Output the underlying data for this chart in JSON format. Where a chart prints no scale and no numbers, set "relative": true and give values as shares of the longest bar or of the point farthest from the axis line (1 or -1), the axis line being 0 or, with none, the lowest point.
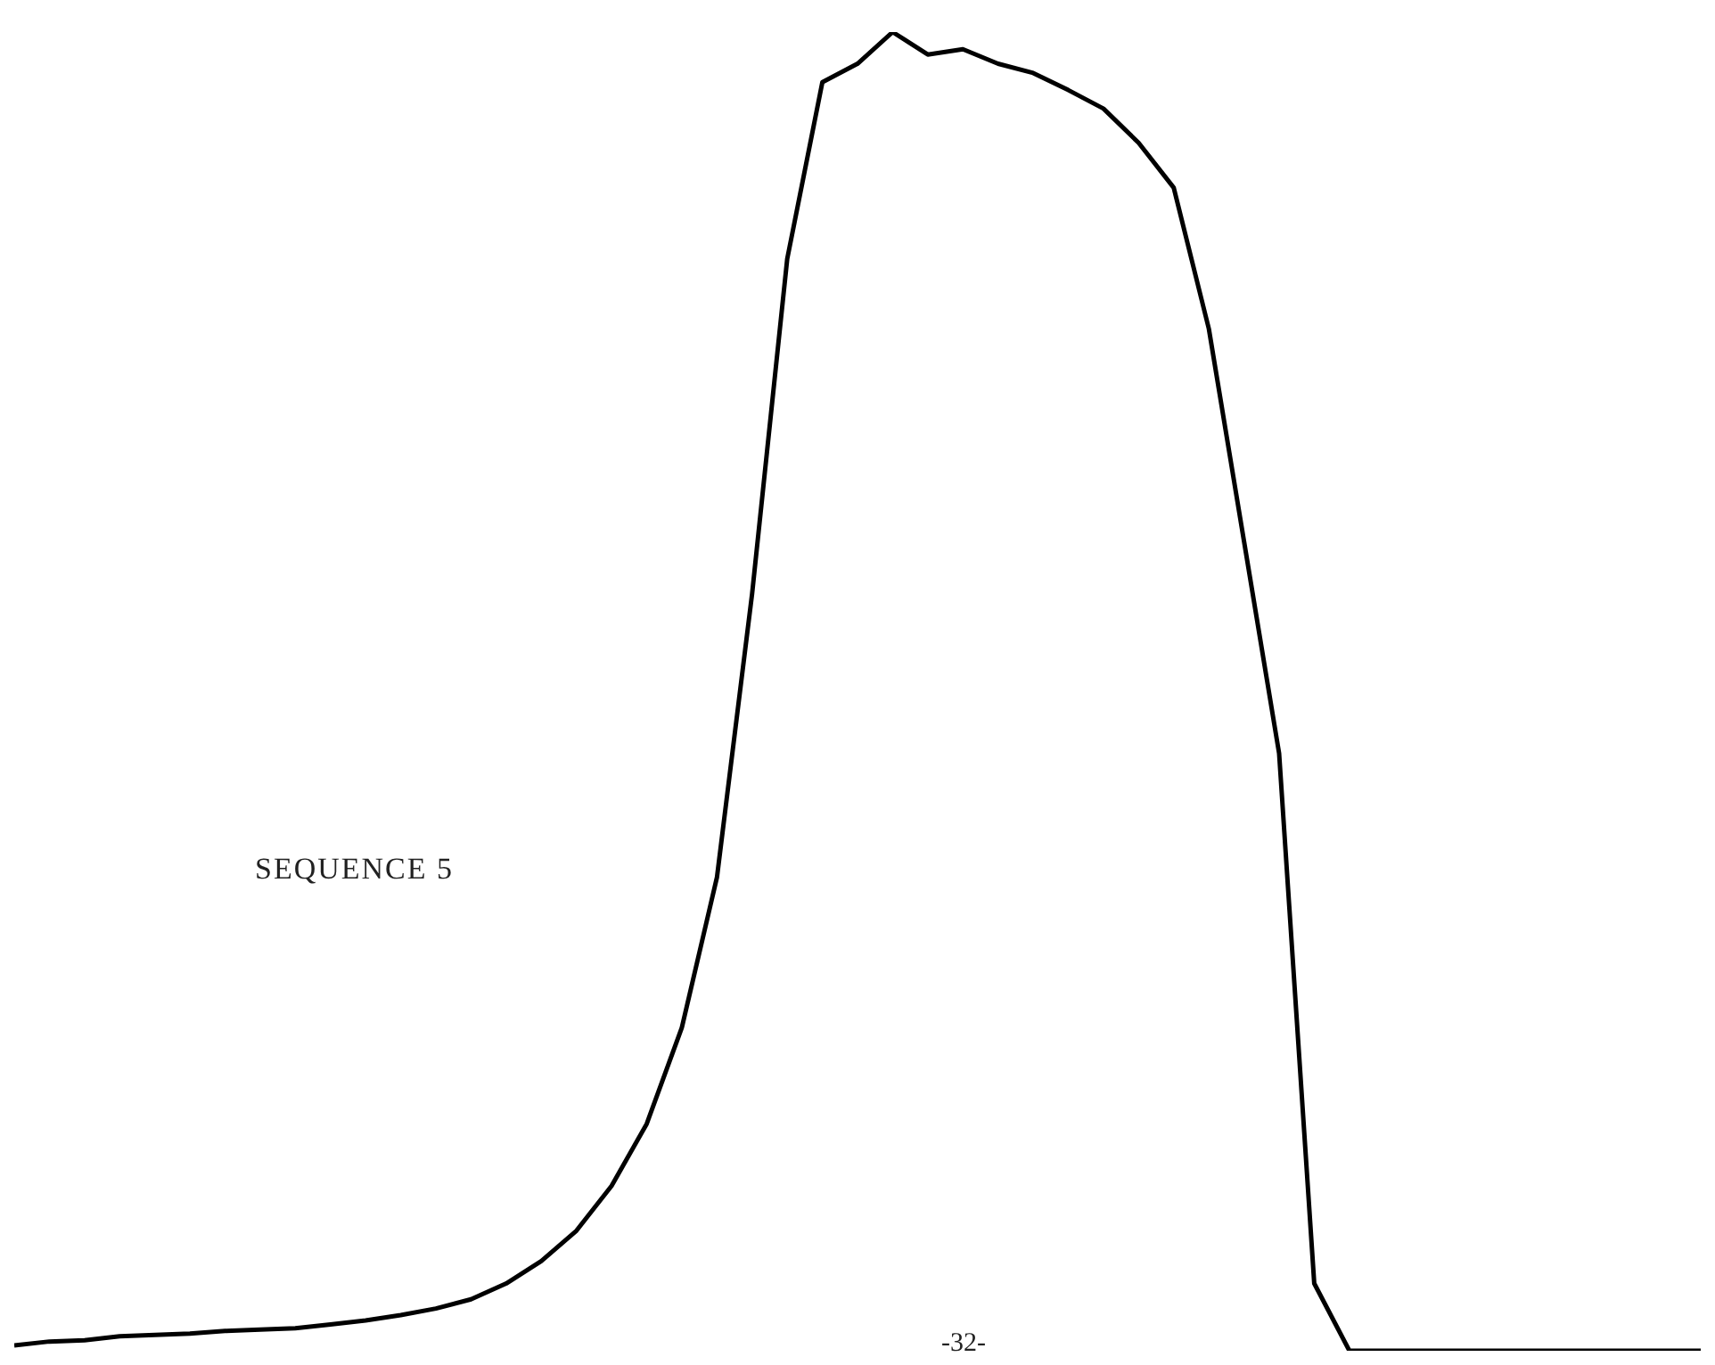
{
  "chart_data": {
    "type": "line",
    "relative": true,
    "marker": "none",
    "line_style": "solid",
    "color": "#000000",
    "categories": [
      null,
      null,
      null,
      null,
      null,
      null,
      null,
      null,
      null,
      null,
      null,
      null,
      null,
      null,
      null,
      null,
      null,
      null,
      null,
      null,
      null,
      null,
      null,
      null,
      null,
      null,
      null,
      null,
      null,
      null,
      null,
      null,
      null,
      null,
      null,
      null,
      null,
      null,
      null,
      null,
      null,
      null,
      null,
      null,
      null,
      null,
      null,
      null,
      null
    ],
    "values": [
      0.004,
      0.007,
      0.008,
      0.011,
      0.012,
      0.013,
      0.015,
      0.016,
      0.017,
      0.02,
      0.023,
      0.027,
      0.032,
      0.039,
      0.051,
      0.068,
      0.091,
      0.125,
      0.172,
      0.245,
      0.359,
      0.574,
      0.828,
      0.962,
      0.976,
      1,
      0.983,
      0.987,
      0.976,
      0.969,
      0.956,
      0.942,
      0.916,
      0.882,
      0.775,
      0.614,
      0.453,
      0.051,
      0,
      0,
      0,
      0,
      0,
      0,
      0,
      0,
      0,
      0,
      0
    ],
    "annotations": [
      "SEQUENCE 5",
      "-32-"
    ]
  }
}
